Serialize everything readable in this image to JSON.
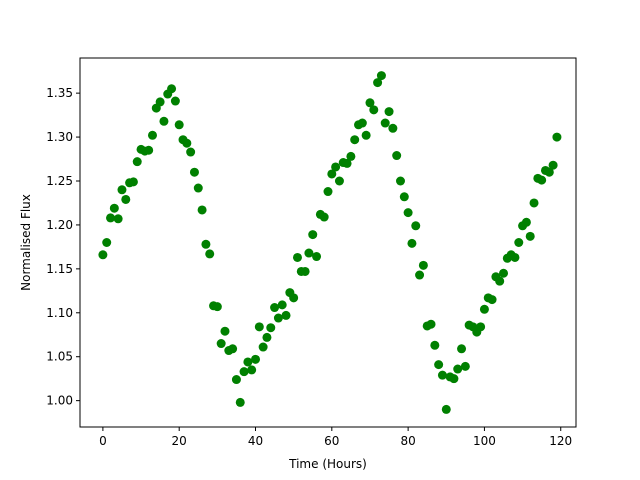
{
  "chart_data": {
    "type": "scatter",
    "title": "",
    "xlabel": "Time (Hours)",
    "ylabel": "Normalised Flux",
    "xlim": [
      -6,
      124
    ],
    "ylim": [
      0.97,
      1.39
    ],
    "xticks": [
      0,
      20,
      40,
      60,
      80,
      100,
      120
    ],
    "yticks": [
      1.0,
      1.05,
      1.1,
      1.15,
      1.2,
      1.25,
      1.3,
      1.35
    ],
    "xtick_labels": [
      "0",
      "20",
      "40",
      "60",
      "80",
      "100",
      "120"
    ],
    "ytick_labels": [
      "1.00",
      "1.05",
      "1.10",
      "1.15",
      "1.20",
      "1.25",
      "1.30",
      "1.35"
    ],
    "grid": false,
    "marker_color": "#008000",
    "points": [
      [
        0.0,
        1.166
      ],
      [
        1.0,
        1.18
      ],
      [
        2.0,
        1.208
      ],
      [
        3.0,
        1.219
      ],
      [
        4.0,
        1.207
      ],
      [
        5.0,
        1.24
      ],
      [
        6.0,
        1.229
      ],
      [
        7.0,
        1.248
      ],
      [
        8.0,
        1.249
      ],
      [
        9.0,
        1.272
      ],
      [
        10.0,
        1.286
      ],
      [
        11.0,
        1.284
      ],
      [
        12.0,
        1.285
      ],
      [
        13.0,
        1.302
      ],
      [
        14.0,
        1.333
      ],
      [
        15.0,
        1.34
      ],
      [
        16.0,
        1.318
      ],
      [
        17.0,
        1.349
      ],
      [
        18.0,
        1.355
      ],
      [
        19.0,
        1.341
      ],
      [
        20.0,
        1.314
      ],
      [
        21.0,
        1.297
      ],
      [
        22.0,
        1.293
      ],
      [
        23.0,
        1.283
      ],
      [
        24.0,
        1.26
      ],
      [
        25.0,
        1.242
      ],
      [
        26.0,
        1.217
      ],
      [
        27.0,
        1.178
      ],
      [
        28.0,
        1.167
      ],
      [
        29.0,
        1.108
      ],
      [
        30.0,
        1.107
      ],
      [
        31.0,
        1.065
      ],
      [
        32.0,
        1.079
      ],
      [
        33.0,
        1.057
      ],
      [
        34.0,
        1.059
      ],
      [
        35.0,
        1.024
      ],
      [
        36.0,
        0.998
      ],
      [
        37.0,
        1.033
      ],
      [
        38.0,
        1.044
      ],
      [
        39.0,
        1.035
      ],
      [
        40.0,
        1.047
      ],
      [
        41.0,
        1.084
      ],
      [
        42.0,
        1.061
      ],
      [
        43.0,
        1.072
      ],
      [
        44.0,
        1.083
      ],
      [
        45.0,
        1.106
      ],
      [
        46.0,
        1.094
      ],
      [
        47.0,
        1.109
      ],
      [
        48.0,
        1.097
      ],
      [
        49.0,
        1.123
      ],
      [
        50.0,
        1.117
      ],
      [
        51.0,
        1.163
      ],
      [
        52.0,
        1.147
      ],
      [
        53.0,
        1.147
      ],
      [
        54.0,
        1.168
      ],
      [
        55.0,
        1.189
      ],
      [
        56.0,
        1.164
      ],
      [
        57.0,
        1.212
      ],
      [
        58.0,
        1.209
      ],
      [
        59.0,
        1.238
      ],
      [
        60.0,
        1.258
      ],
      [
        61.0,
        1.266
      ],
      [
        62.0,
        1.25
      ],
      [
        63.0,
        1.271
      ],
      [
        64.0,
        1.27
      ],
      [
        65.0,
        1.278
      ],
      [
        66.0,
        1.297
      ],
      [
        67.0,
        1.314
      ],
      [
        68.0,
        1.316
      ],
      [
        69.0,
        1.302
      ],
      [
        70.0,
        1.339
      ],
      [
        71.0,
        1.331
      ],
      [
        72.0,
        1.362
      ],
      [
        73.0,
        1.37
      ],
      [
        74.0,
        1.316
      ],
      [
        75.0,
        1.329
      ],
      [
        76.0,
        1.31
      ],
      [
        77.0,
        1.279
      ],
      [
        78.0,
        1.25
      ],
      [
        79.0,
        1.232
      ],
      [
        80.0,
        1.214
      ],
      [
        81.0,
        1.179
      ],
      [
        82.0,
        1.199
      ],
      [
        83.0,
        1.143
      ],
      [
        84.0,
        1.154
      ],
      [
        85.0,
        1.085
      ],
      [
        86.0,
        1.087
      ],
      [
        87.0,
        1.063
      ],
      [
        88.0,
        1.041
      ],
      [
        89.0,
        1.029
      ],
      [
        90.0,
        0.99
      ],
      [
        91.0,
        1.027
      ],
      [
        92.0,
        1.025
      ],
      [
        93.0,
        1.036
      ],
      [
        94.0,
        1.059
      ],
      [
        95.0,
        1.039
      ],
      [
        96.0,
        1.086
      ],
      [
        97.0,
        1.084
      ],
      [
        98.0,
        1.078
      ],
      [
        99.0,
        1.084
      ],
      [
        100.0,
        1.104
      ],
      [
        101.0,
        1.117
      ],
      [
        102.0,
        1.115
      ],
      [
        103.0,
        1.141
      ],
      [
        104.0,
        1.136
      ],
      [
        105.0,
        1.145
      ],
      [
        106.0,
        1.162
      ],
      [
        107.0,
        1.166
      ],
      [
        108.0,
        1.163
      ],
      [
        109.0,
        1.18
      ],
      [
        110.0,
        1.199
      ],
      [
        111.0,
        1.203
      ],
      [
        112.0,
        1.187
      ],
      [
        113.0,
        1.225
      ],
      [
        114.0,
        1.253
      ],
      [
        115.0,
        1.251
      ],
      [
        116.0,
        1.262
      ],
      [
        117.0,
        1.26
      ],
      [
        118.0,
        1.268
      ],
      [
        119.0,
        1.3
      ]
    ]
  }
}
